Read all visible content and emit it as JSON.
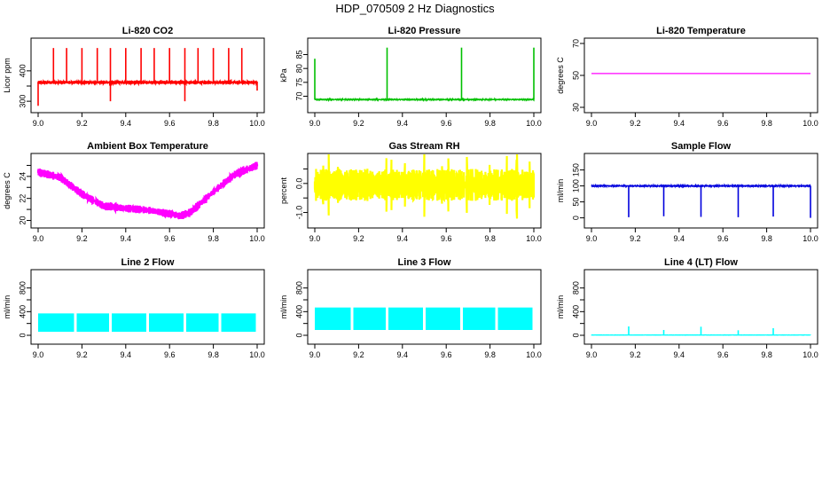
{
  "title": "HDP_070509  2 Hz Diagnostics",
  "chart_data": [
    {
      "id": "co2",
      "type": "line",
      "title": "Li-820 CO2",
      "ylabel": "Licor ppm",
      "color": "#ff0000",
      "xlim": [
        9.0,
        10.0
      ],
      "ylim": [
        280,
        490
      ],
      "xticks": [
        9.0,
        9.2,
        9.4,
        9.6,
        9.8,
        10.0
      ],
      "xtick_labels": [
        "9.0",
        "9.2",
        "9.4",
        "9.6",
        "9.8",
        "10.0"
      ],
      "yticks": [
        300,
        350,
        400
      ],
      "ytick_labels": [
        "300",
        "",
        "400"
      ],
      "baseline": 362,
      "noise": 5,
      "events": [
        {
          "x": 9.0,
          "y": 285
        },
        {
          "x": 9.07,
          "y": 475
        },
        {
          "x": 9.13,
          "y": 475
        },
        {
          "x": 9.2,
          "y": 475
        },
        {
          "x": 9.27,
          "y": 475
        },
        {
          "x": 9.33,
          "y": 300
        },
        {
          "x": 9.33,
          "y": 475
        },
        {
          "x": 9.4,
          "y": 475
        },
        {
          "x": 9.47,
          "y": 475
        },
        {
          "x": 9.53,
          "y": 475
        },
        {
          "x": 9.6,
          "y": 475
        },
        {
          "x": 9.67,
          "y": 300
        },
        {
          "x": 9.67,
          "y": 475
        },
        {
          "x": 9.73,
          "y": 475
        },
        {
          "x": 9.8,
          "y": 475
        },
        {
          "x": 9.87,
          "y": 475
        },
        {
          "x": 9.93,
          "y": 475
        },
        {
          "x": 10.0,
          "y": 335
        }
      ]
    },
    {
      "id": "pressure",
      "type": "line",
      "title": "Li-820 Pressure",
      "ylabel": "kPa",
      "color": "#00c000",
      "xlim": [
        9.0,
        10.0
      ],
      "ylim": [
        66,
        89
      ],
      "xticks": [
        9.0,
        9.2,
        9.4,
        9.6,
        9.8,
        10.0
      ],
      "xtick_labels": [
        "9.0",
        "9.2",
        "9.4",
        "9.6",
        "9.8",
        "10.0"
      ],
      "yticks": [
        70,
        75,
        80,
        85
      ],
      "ytick_labels": [
        "70",
        "75",
        "80",
        "85"
      ],
      "baseline": 68.8,
      "noise": 0.15,
      "events": [
        {
          "x": 9.0,
          "y": 83.5
        },
        {
          "x": 9.33,
          "y": 87.5
        },
        {
          "x": 9.67,
          "y": 87.5
        },
        {
          "x": 10.0,
          "y": 87.5
        }
      ]
    },
    {
      "id": "temperature",
      "type": "line",
      "title": "Li-820 Temperature",
      "ylabel": "degrees C",
      "color": "#ff00ff",
      "xlim": [
        9.0,
        10.0
      ],
      "ylim": [
        30,
        70
      ],
      "xticks": [
        9.0,
        9.2,
        9.4,
        9.6,
        9.8,
        10.0
      ],
      "xtick_labels": [
        "9.0",
        "9.2",
        "9.4",
        "9.6",
        "9.8",
        "10.0"
      ],
      "yticks": [
        30,
        50,
        70
      ],
      "ytick_labels": [
        "30",
        "50",
        "70"
      ],
      "baseline": 51.2,
      "noise": 0,
      "events": []
    },
    {
      "id": "ambient",
      "type": "line",
      "title": "Ambient Box Temperature",
      "ylabel": "degrees C",
      "color": "#ff00ff",
      "xlim": [
        9.0,
        10.0
      ],
      "ylim": [
        19.8,
        25.6
      ],
      "xticks": [
        9.0,
        9.2,
        9.4,
        9.6,
        9.8,
        10.0
      ],
      "xtick_labels": [
        "9.0",
        "9.2",
        "9.4",
        "9.6",
        "9.8",
        "10.0"
      ],
      "yticks": [
        20,
        21,
        22,
        23,
        24,
        25
      ],
      "ytick_labels": [
        "20",
        "",
        "22",
        "",
        "24",
        ""
      ],
      "curve": {
        "x": [
          9.0,
          9.1,
          9.2,
          9.3,
          9.4,
          9.5,
          9.6,
          9.65,
          9.7,
          9.8,
          9.9,
          10.0
        ],
        "y": [
          24.4,
          23.9,
          22.4,
          21.3,
          21.1,
          20.95,
          20.6,
          20.4,
          20.8,
          22.6,
          24.2,
          25.0
        ]
      },
      "noise": 0.35,
      "events": []
    },
    {
      "id": "rh",
      "type": "line",
      "title": "Gas Stream RH",
      "ylabel": "percent",
      "color": "#ffff00",
      "xlim": [
        9.0,
        10.0
      ],
      "ylim": [
        -1.35,
        0.85
      ],
      "xticks": [
        9.0,
        9.2,
        9.4,
        9.6,
        9.8,
        10.0
      ],
      "xtick_labels": [
        "9.0",
        "9.2",
        "9.4",
        "9.6",
        "9.8",
        "10.0"
      ],
      "yticks": [
        -1.0,
        -0.5,
        0.0,
        0.5
      ],
      "ytick_labels": [
        "-1.0",
        "",
        "0.0",
        ""
      ],
      "baseline": -0.05,
      "noise": 0.55,
      "spikes": 1.2,
      "events": []
    },
    {
      "id": "sample_flow",
      "type": "line",
      "title": "Sample Flow",
      "ylabel": "ml/min",
      "color": "#0000dd",
      "xlim": [
        9.0,
        10.0
      ],
      "ylim": [
        -15,
        185
      ],
      "xticks": [
        9.0,
        9.2,
        9.4,
        9.6,
        9.8,
        10.0
      ],
      "xtick_labels": [
        "9.0",
        "9.2",
        "9.4",
        "9.6",
        "9.8",
        "10.0"
      ],
      "yticks": [
        0,
        50,
        100,
        150
      ],
      "ytick_labels": [
        "0",
        "50",
        "100",
        "150"
      ],
      "baseline": 100,
      "noise": 2.5,
      "events": [
        {
          "x": 9.17,
          "y": 2
        },
        {
          "x": 9.33,
          "y": 5
        },
        {
          "x": 9.5,
          "y": 3
        },
        {
          "x": 9.67,
          "y": 2
        },
        {
          "x": 9.83,
          "y": 4
        },
        {
          "x": 10.0,
          "y": 0
        }
      ]
    },
    {
      "id": "line2",
      "type": "line",
      "title": "Line 2 Flow",
      "ylabel": "ml/min",
      "color": "#00ffff",
      "xlim": [
        9.0,
        10.0
      ],
      "ylim": [
        -60,
        1020
      ],
      "xticks": [
        9.0,
        9.2,
        9.4,
        9.6,
        9.8,
        10.0
      ],
      "xtick_labels": [
        "9.0",
        "9.2",
        "9.4",
        "9.6",
        "9.8",
        "10.0"
      ],
      "yticks": [
        0,
        200,
        400,
        600,
        800
      ],
      "ytick_labels": [
        "0",
        "",
        "400",
        "",
        "800"
      ],
      "band": {
        "low": 60,
        "high": 370
      },
      "gaps": [
        9.17,
        9.33,
        9.5,
        9.67,
        9.83
      ],
      "events": []
    },
    {
      "id": "line3",
      "type": "line",
      "title": "Line 3 Flow",
      "ylabel": "ml/min",
      "color": "#00ffff",
      "xlim": [
        9.0,
        10.0
      ],
      "ylim": [
        -60,
        1020
      ],
      "xticks": [
        9.0,
        9.2,
        9.4,
        9.6,
        9.8,
        10.0
      ],
      "xtick_labels": [
        "9.0",
        "9.2",
        "9.4",
        "9.6",
        "9.8",
        "10.0"
      ],
      "yticks": [
        0,
        200,
        400,
        600,
        800
      ],
      "ytick_labels": [
        "0",
        "",
        "400",
        "",
        "800"
      ],
      "band": {
        "low": 90,
        "high": 470
      },
      "gaps": [
        9.17,
        9.33,
        9.5,
        9.67,
        9.83
      ],
      "events": []
    },
    {
      "id": "line4",
      "type": "line",
      "title": "Line 4 (LT) Flow",
      "ylabel": "ml/min",
      "color": "#00ffff",
      "xlim": [
        9.0,
        10.0
      ],
      "ylim": [
        -60,
        1020
      ],
      "xticks": [
        9.0,
        9.2,
        9.4,
        9.6,
        9.8,
        10.0
      ],
      "xtick_labels": [
        "9.0",
        "9.2",
        "9.4",
        "9.6",
        "9.8",
        "10.0"
      ],
      "yticks": [
        0,
        200,
        400,
        600,
        800
      ],
      "ytick_labels": [
        "0",
        "",
        "400",
        "",
        "800"
      ],
      "baseline": 5,
      "noise": 1,
      "events": [
        {
          "x": 9.17,
          "y": 150
        },
        {
          "x": 9.33,
          "y": 90
        },
        {
          "x": 9.5,
          "y": 145
        },
        {
          "x": 9.67,
          "y": 85
        },
        {
          "x": 9.83,
          "y": 120
        }
      ]
    }
  ]
}
